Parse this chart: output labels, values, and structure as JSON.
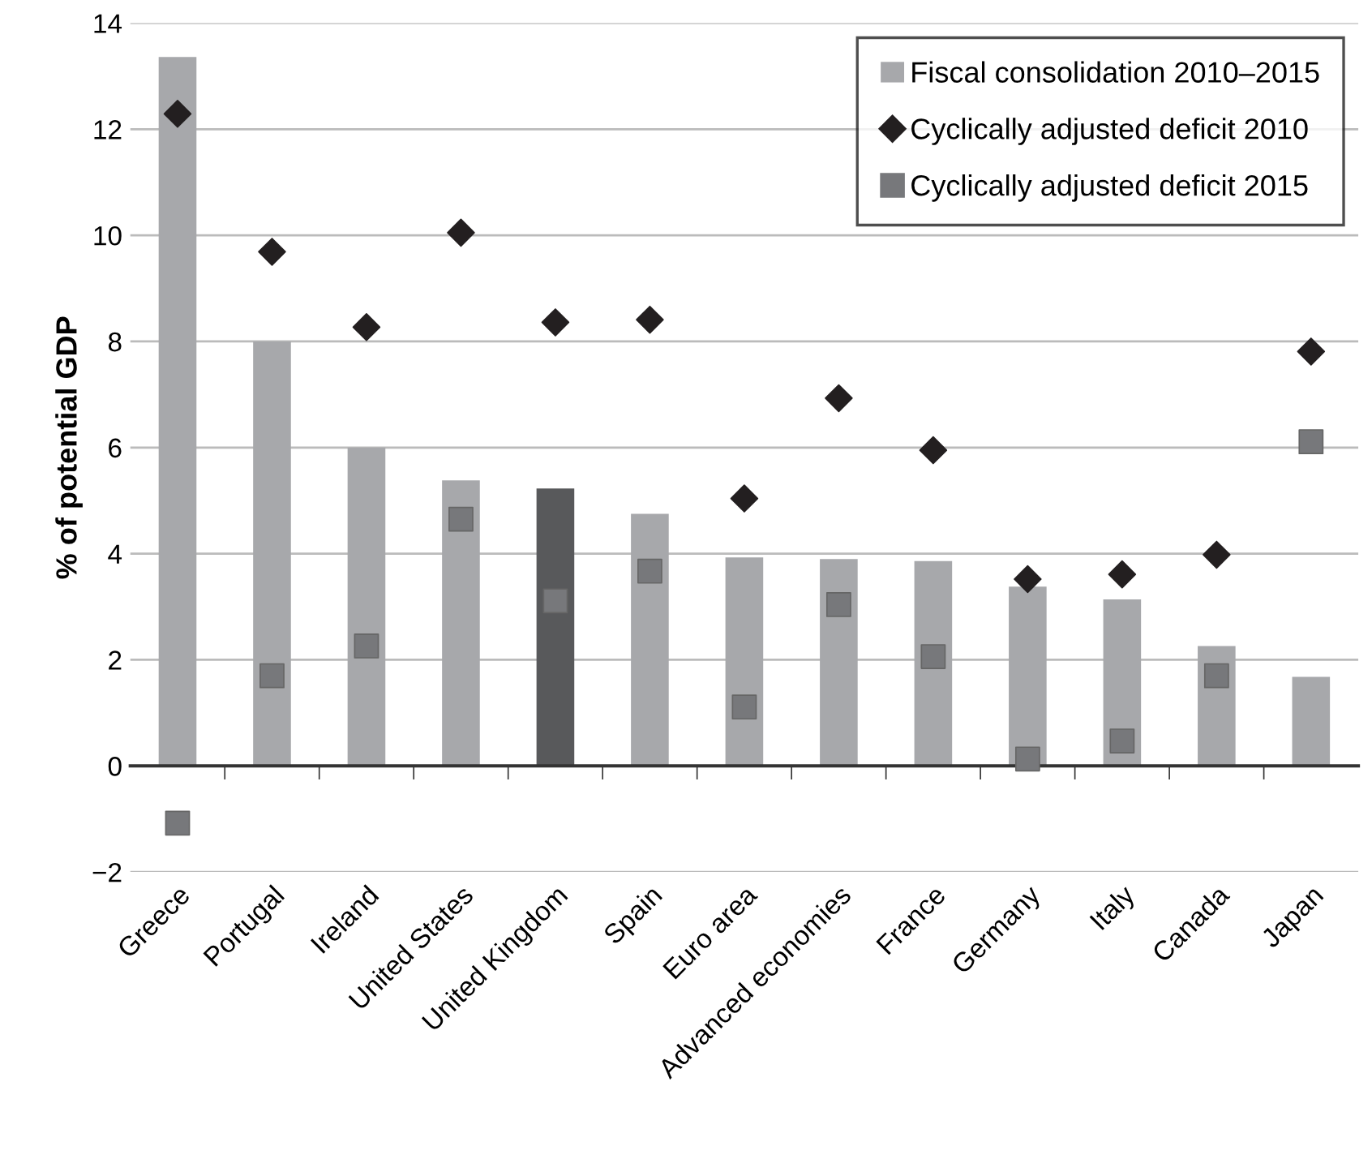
{
  "chart_data": {
    "type": "bar",
    "ylabel": "% of potential GDP",
    "categories": [
      "Greece",
      "Portugal",
      "Ireland",
      "United States",
      "United Kingdom",
      "Spain",
      "Euro area",
      "Advanced economies",
      "France",
      "Germany",
      "Italy",
      "Canada",
      "Japan"
    ],
    "series": [
      {
        "name": "Fiscal consolidation 2010–2015",
        "color": "#a7a8ab",
        "colors": [
          "#a7a8ab",
          "#a7a8ab",
          "#a7a8ab",
          "#a7a8ab",
          "#58595b",
          "#a7a8ab",
          "#a7a8ab",
          "#a7a8ab",
          "#a7a8ab",
          "#a7a8ab",
          "#a7a8ab",
          "#a7a8ab",
          "#a7a8ab"
        ],
        "values": [
          13.36,
          8.0,
          6.0,
          5.38,
          5.23,
          4.75,
          3.93,
          3.9,
          3.86,
          3.38,
          3.14,
          2.26,
          1.68
        ]
      },
      {
        "name": "Cyclically adjusted deficit 2010",
        "type": "scatter",
        "marker": "diamond",
        "color": "#231f20",
        "x": [
          "Greece",
          "Portugal",
          "Ireland",
          "United States",
          "United Kingdom",
          "Spain",
          "Euro area",
          "Advanced economies",
          "France",
          "Germany",
          "Italy",
          "Canada",
          "Japan"
        ],
        "values": [
          12.29,
          9.69,
          8.27,
          10.05,
          8.36,
          8.41,
          5.04,
          6.93,
          5.95,
          3.52,
          3.61,
          3.98,
          7.81
        ]
      },
      {
        "name": "Cyclically adjusted deficit 2015",
        "type": "scatter",
        "marker": "square",
        "color": "#77787b",
        "x": [
          "Greece",
          "Portugal",
          "Ireland",
          "United States",
          "United Kingdom",
          "Spain",
          "Euro area",
          "Advanced economies",
          "France",
          "Germany",
          "Italy",
          "Canada",
          "Japan"
        ],
        "values": [
          -1.08,
          1.7,
          2.26,
          4.65,
          3.11,
          3.67,
          1.11,
          3.04,
          2.06,
          0.13,
          0.47,
          1.7,
          6.11
        ]
      }
    ],
    "ylim": [
      -2,
      14
    ],
    "yticks": [
      {
        "value": -2,
        "label": "−2"
      },
      0,
      2,
      4,
      6,
      8,
      10,
      12,
      14
    ],
    "grid": "y",
    "legend": "top right"
  }
}
